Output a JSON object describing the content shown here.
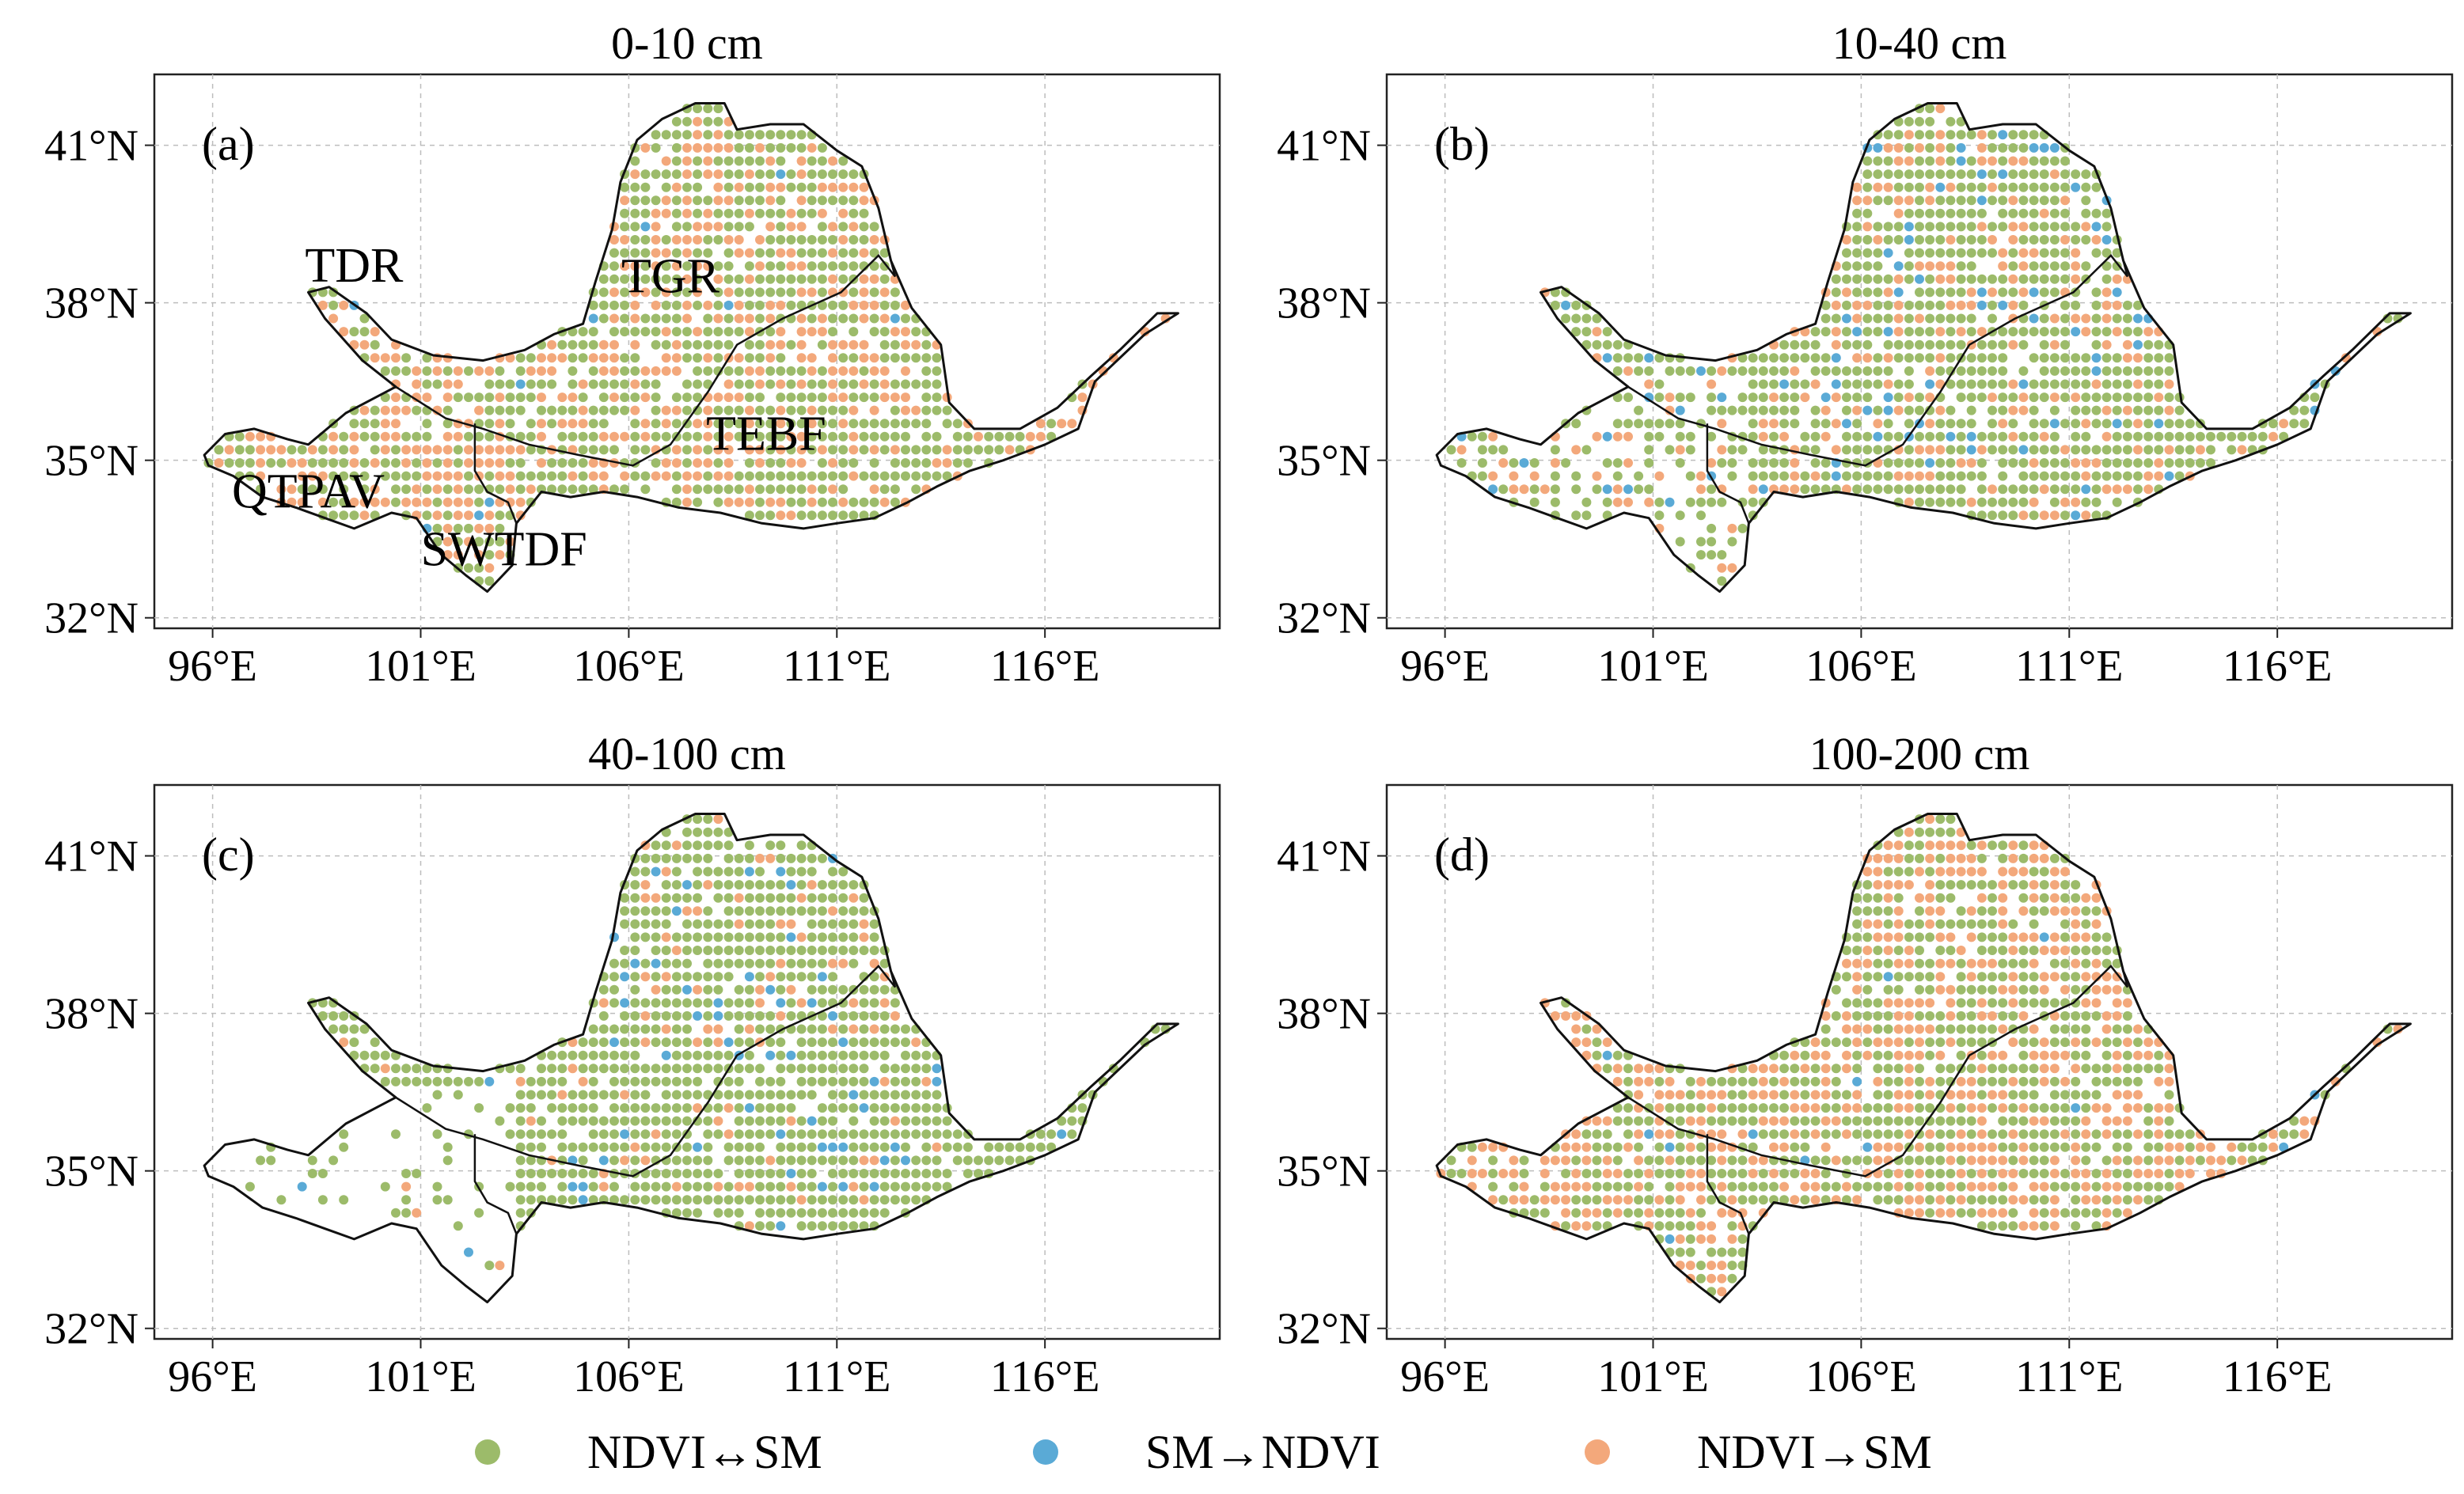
{
  "figure": {
    "x_ticks": [
      "96°E",
      "101°E",
      "106°E",
      "111°E",
      "116°E"
    ],
    "y_ticks": [
      "32°N",
      "35°N",
      "38°N",
      "41°N"
    ]
  },
  "panels": [
    {
      "title": "0-10 cm",
      "letter": "(a)",
      "region_labels": [
        "TDR",
        "TGR",
        "TEBF",
        "QTPAV",
        "SWTDF"
      ],
      "mix": {
        "green": 0.62,
        "blue": 0.01,
        "orange": 0.37
      }
    },
    {
      "title": "10-40 cm",
      "letter": "(b)",
      "region_labels": [],
      "mix": {
        "green": 0.72,
        "blue": 0.07,
        "orange": 0.21
      }
    },
    {
      "title": "40-100 cm",
      "letter": "(c)",
      "region_labels": [],
      "mix": {
        "green": 0.84,
        "blue": 0.06,
        "orange": 0.1
      }
    },
    {
      "title": "100-200 cm",
      "letter": "(d)",
      "region_labels": [],
      "mix": {
        "green": 0.55,
        "blue": 0.01,
        "orange": 0.44
      }
    }
  ],
  "legend": [
    {
      "label": "NDVI↔SM",
      "color": "#9cbb6a",
      "icon": "circle-marker"
    },
    {
      "label": "SM→NDVI",
      "color": "#5aaad6",
      "icon": "circle-marker"
    },
    {
      "label": "NDVI→SM",
      "color": "#f3a87b",
      "icon": "circle-marker"
    }
  ]
}
